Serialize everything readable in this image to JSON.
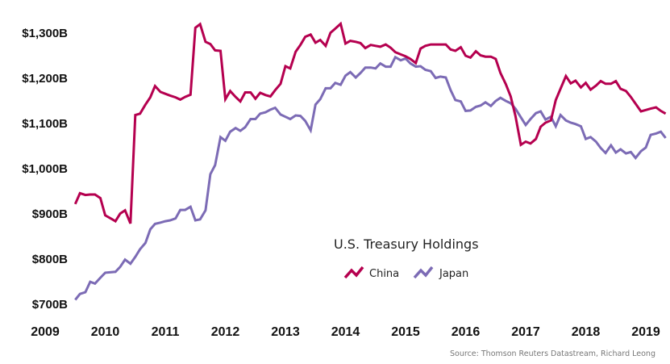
{
  "chart_data": {
    "type": "line",
    "title": "U.S. Treasury Holdings",
    "xlabel": "",
    "ylabel": "",
    "source": "Source: Thomson Reuters Datastream, Richard Leong",
    "xlim": [
      2009,
      2019.4
    ],
    "ylim": [
      700,
      1300
    ],
    "grid": false,
    "legend_position": "center-bottom",
    "x_ticks": [
      2009,
      2010,
      2011,
      2012,
      2013,
      2014,
      2015,
      2016,
      2017,
      2018,
      2019
    ],
    "x_tick_labels": [
      "2009",
      "2010",
      "2011",
      "2012",
      "2013",
      "2014",
      "2015",
      "2016",
      "2017",
      "2018",
      "2019"
    ],
    "y_ticks": [
      700,
      800,
      900,
      1000,
      1100,
      1200,
      1300
    ],
    "y_tick_labels": [
      "$700B",
      "$800B",
      "$900B",
      "$1,000B",
      "$1,100B",
      "$1,200B",
      "$1,300B"
    ],
    "series": [
      {
        "name": "China",
        "color": "#b5004f",
        "x": [
          2009.5,
          2009.58,
          2009.67,
          2009.75,
          2009.83,
          2009.92,
          2010.0,
          2010.08,
          2010.17,
          2010.25,
          2010.33,
          2010.42,
          2010.5,
          2010.58,
          2010.67,
          2010.75,
          2010.83,
          2010.92,
          2011.0,
          2011.08,
          2011.17,
          2011.25,
          2011.33,
          2011.42,
          2011.5,
          2011.58,
          2011.67,
          2011.75,
          2011.83,
          2011.92,
          2012.0,
          2012.08,
          2012.17,
          2012.25,
          2012.33,
          2012.42,
          2012.5,
          2012.58,
          2012.67,
          2012.75,
          2012.83,
          2012.92,
          2013.0,
          2013.08,
          2013.17,
          2013.25,
          2013.33,
          2013.42,
          2013.5,
          2013.58,
          2013.67,
          2013.75,
          2013.83,
          2013.92,
          2014.0,
          2014.08,
          2014.17,
          2014.25,
          2014.33,
          2014.42,
          2014.5,
          2014.58,
          2014.67,
          2014.75,
          2014.83,
          2014.92,
          2015.0,
          2015.08,
          2015.17,
          2015.25,
          2015.33,
          2015.42,
          2015.5,
          2015.58,
          2015.67,
          2015.75,
          2015.83,
          2015.92,
          2016.0,
          2016.08,
          2016.17,
          2016.25,
          2016.33,
          2016.42,
          2016.5,
          2016.58,
          2016.67,
          2016.75,
          2016.83,
          2016.92,
          2017.0,
          2017.08,
          2017.17,
          2017.25,
          2017.33,
          2017.42,
          2017.5,
          2017.58,
          2017.67,
          2017.75,
          2017.83,
          2017.92,
          2018.0,
          2018.08,
          2018.17,
          2018.25,
          2018.33,
          2018.42,
          2018.5,
          2018.58,
          2018.67,
          2018.75,
          2018.83,
          2018.92,
          2019.0,
          2019.08,
          2019.17,
          2019.25,
          2019.33
        ],
        "values": [
          920,
          944,
          940,
          941,
          941,
          933,
          895,
          889,
          882,
          899,
          906,
          877,
          1117,
          1120,
          1140,
          1156,
          1181,
          1168,
          1164,
          1160,
          1156,
          1151,
          1157,
          1162,
          1310,
          1318,
          1279,
          1274,
          1260,
          1259,
          1152,
          1170,
          1157,
          1147,
          1167,
          1167,
          1153,
          1166,
          1161,
          1158,
          1172,
          1186,
          1225,
          1220,
          1257,
          1272,
          1290,
          1295,
          1277,
          1283,
          1270,
          1299,
          1308,
          1319,
          1275,
          1281,
          1279,
          1276,
          1265,
          1272,
          1270,
          1268,
          1273,
          1266,
          1256,
          1251,
          1247,
          1241,
          1232,
          1264,
          1270,
          1273,
          1273,
          1273,
          1273,
          1262,
          1259,
          1267,
          1248,
          1244,
          1258,
          1249,
          1246,
          1246,
          1241,
          1210,
          1185,
          1158,
          1115,
          1051,
          1058,
          1054,
          1064,
          1091,
          1100,
          1105,
          1150,
          1175,
          1203,
          1187,
          1193,
          1178,
          1188,
          1173,
          1182,
          1192,
          1186,
          1186,
          1192,
          1175,
          1170,
          1157,
          1142,
          1125,
          1128,
          1131,
          1134,
          1126,
          1120
        ]
      },
      {
        "name": "Japan",
        "color": "#7c6bb5",
        "x": [
          2009.5,
          2009.58,
          2009.67,
          2009.75,
          2009.83,
          2009.92,
          2010.0,
          2010.08,
          2010.17,
          2010.25,
          2010.33,
          2010.42,
          2010.5,
          2010.58,
          2010.67,
          2010.75,
          2010.83,
          2010.92,
          2011.0,
          2011.08,
          2011.17,
          2011.25,
          2011.33,
          2011.42,
          2011.5,
          2011.58,
          2011.67,
          2011.75,
          2011.83,
          2011.92,
          2012.0,
          2012.08,
          2012.17,
          2012.25,
          2012.33,
          2012.42,
          2012.5,
          2012.58,
          2012.67,
          2012.75,
          2012.83,
          2012.92,
          2013.0,
          2013.08,
          2013.17,
          2013.25,
          2013.33,
          2013.42,
          2013.5,
          2013.58,
          2013.67,
          2013.75,
          2013.83,
          2013.92,
          2014.0,
          2014.08,
          2014.17,
          2014.25,
          2014.33,
          2014.42,
          2014.5,
          2014.58,
          2014.67,
          2014.75,
          2014.83,
          2014.92,
          2015.0,
          2015.08,
          2015.17,
          2015.25,
          2015.33,
          2015.42,
          2015.5,
          2015.58,
          2015.67,
          2015.75,
          2015.83,
          2015.92,
          2016.0,
          2016.08,
          2016.17,
          2016.25,
          2016.33,
          2016.42,
          2016.5,
          2016.58,
          2016.67,
          2016.75,
          2016.83,
          2016.92,
          2017.0,
          2017.08,
          2017.17,
          2017.25,
          2017.33,
          2017.42,
          2017.5,
          2017.58,
          2017.67,
          2017.75,
          2017.83,
          2017.92,
          2018.0,
          2018.08,
          2018.17,
          2018.25,
          2018.33,
          2018.42,
          2018.5,
          2018.58,
          2018.67,
          2018.75,
          2018.83,
          2018.92,
          2019.0,
          2019.08,
          2019.17,
          2019.25,
          2019.33
        ],
        "values": [
          708,
          721,
          725,
          748,
          744,
          757,
          768,
          769,
          770,
          781,
          797,
          788,
          803,
          820,
          834,
          864,
          876,
          879,
          882,
          884,
          888,
          907,
          907,
          914,
          884,
          886,
          906,
          986,
          1006,
          1068,
          1060,
          1080,
          1088,
          1082,
          1090,
          1108,
          1108,
          1120,
          1123,
          1129,
          1133,
          1118,
          1113,
          1108,
          1116,
          1115,
          1104,
          1083,
          1140,
          1152,
          1176,
          1176,
          1188,
          1184,
          1204,
          1212,
          1200,
          1210,
          1222,
          1222,
          1220,
          1231,
          1224,
          1224,
          1245,
          1238,
          1242,
          1231,
          1224,
          1225,
          1217,
          1214,
          1199,
          1202,
          1200,
          1172,
          1150,
          1147,
          1126,
          1127,
          1135,
          1138,
          1145,
          1137,
          1148,
          1155,
          1148,
          1143,
          1131,
          1112,
          1095,
          1108,
          1121,
          1125,
          1107,
          1113,
          1092,
          1117,
          1105,
          1100,
          1097,
          1092,
          1064,
          1068,
          1058,
          1044,
          1033,
          1050,
          1034,
          1041,
          1032,
          1035,
          1022,
          1037,
          1045,
          1073,
          1076,
          1080,
          1066
        ]
      }
    ]
  }
}
